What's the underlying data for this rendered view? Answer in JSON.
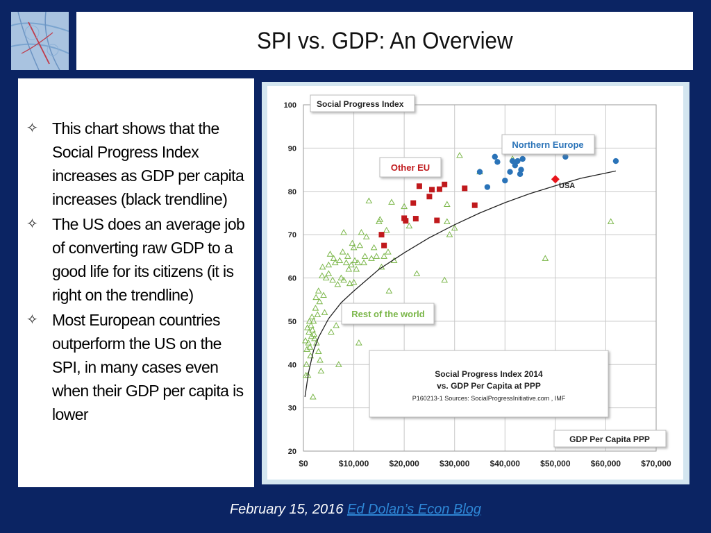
{
  "slide": {
    "title": "SPI vs. GDP: An Overview",
    "bullets": [
      "This chart shows that the Social Progress Index increases as GDP per capita increases (black trendline)",
      "The US does an average job of converting raw GDP to a good life for its citizens (it is right on the trendline)",
      "Most European countries outperform the US on the SPI, in many cases even when their GDP per capita is lower"
    ],
    "bullet_icon": "four-pointed-star-outline-icon",
    "footer": {
      "date": "February 15, 2016",
      "link_text": "Ed Dolan’s Econ Blog"
    },
    "colors": {
      "background": "#0b2463",
      "link": "#2e87d6"
    }
  },
  "chart_data": {
    "type": "scatter",
    "title": "Social Progress Index 2014",
    "subtitle": "vs. GDP Per Capita at PPP",
    "source_note": "P160213-1 Sources: SocialProgressInitiative.com , IMF",
    "ylabel": "Social Progress Index",
    "xlabel": "GDP Per Capita PPP",
    "xlim": [
      0,
      70000
    ],
    "ylim": [
      20,
      100
    ],
    "x_ticks": [
      0,
      10000,
      20000,
      30000,
      40000,
      50000,
      60000,
      70000
    ],
    "x_tick_labels": [
      "$0",
      "$10,000",
      "$20,000",
      "$30,000",
      "$40,000",
      "$50,000",
      "$60,000",
      "$70,000"
    ],
    "y_ticks": [
      20,
      30,
      40,
      50,
      60,
      70,
      80,
      90,
      100
    ],
    "y_tick_labels": [
      "20",
      "30",
      "40",
      "50",
      "60",
      "70",
      "80",
      "90",
      "100"
    ],
    "grid": true,
    "group_labels": {
      "northern_europe": "Northern Europe",
      "other_eu": "Other EU",
      "rest_of_world": "Rest of the world",
      "usa": "USA"
    },
    "series": [
      {
        "name": "Northern Europe",
        "marker": "circle",
        "color": "#2a73b8",
        "points": [
          [
            35000,
            84.5
          ],
          [
            36500,
            81
          ],
          [
            38000,
            88
          ],
          [
            38500,
            86.8
          ],
          [
            40000,
            82.5
          ],
          [
            41000,
            84.5
          ],
          [
            41500,
            87
          ],
          [
            42000,
            86
          ],
          [
            42500,
            87
          ],
          [
            43000,
            84
          ],
          [
            43200,
            85
          ],
          [
            43500,
            87.5
          ],
          [
            52000,
            88
          ],
          [
            62000,
            87
          ]
        ]
      },
      {
        "name": "Other EU",
        "marker": "square",
        "color": "#c0191c",
        "points": [
          [
            15500,
            70
          ],
          [
            16000,
            67.5
          ],
          [
            20000,
            73.8
          ],
          [
            20300,
            73.2
          ],
          [
            21800,
            77.3
          ],
          [
            22300,
            73.7
          ],
          [
            23000,
            81.2
          ],
          [
            25000,
            78.8
          ],
          [
            25500,
            80.4
          ],
          [
            26500,
            73.3
          ],
          [
            27000,
            80.5
          ],
          [
            28000,
            81.6
          ],
          [
            32000,
            80.7
          ],
          [
            34000,
            76.8
          ]
        ]
      },
      {
        "name": "USA",
        "marker": "diamond",
        "color": "#e8141b",
        "points": [
          [
            50000,
            82.8
          ]
        ]
      },
      {
        "name": "Rest of the world",
        "marker": "triangle",
        "color": "#7ab648",
        "points": [
          [
            400,
            45.5
          ],
          [
            500,
            37.5
          ],
          [
            600,
            40
          ],
          [
            700,
            43.5
          ],
          [
            800,
            48.5
          ],
          [
            900,
            37.5
          ],
          [
            1000,
            45
          ],
          [
            1100,
            47.5
          ],
          [
            1200,
            50
          ],
          [
            1300,
            44
          ],
          [
            1400,
            42
          ],
          [
            1500,
            49
          ],
          [
            1600,
            46.5
          ],
          [
            1700,
            51
          ],
          [
            1800,
            48
          ],
          [
            1900,
            32.5
          ],
          [
            2000,
            50
          ],
          [
            2100,
            47
          ],
          [
            2200,
            46
          ],
          [
            2400,
            53
          ],
          [
            2500,
            55.5
          ],
          [
            2600,
            45
          ],
          [
            2800,
            51.5
          ],
          [
            3000,
            57
          ],
          [
            3000,
            43
          ],
          [
            3200,
            54.5
          ],
          [
            3300,
            41
          ],
          [
            3500,
            38.5
          ],
          [
            3700,
            60.5
          ],
          [
            3800,
            62.5
          ],
          [
            4000,
            56
          ],
          [
            4200,
            52
          ],
          [
            4500,
            60
          ],
          [
            5000,
            63
          ],
          [
            5000,
            61
          ],
          [
            5300,
            65.5
          ],
          [
            5500,
            47.5
          ],
          [
            5800,
            59.5
          ],
          [
            6000,
            64.5
          ],
          [
            6300,
            63.5
          ],
          [
            6500,
            49
          ],
          [
            6800,
            58.5
          ],
          [
            7000,
            40
          ],
          [
            7200,
            64
          ],
          [
            7500,
            60
          ],
          [
            7800,
            66
          ],
          [
            8000,
            59.5
          ],
          [
            8000,
            70.5
          ],
          [
            8500,
            63.5
          ],
          [
            8800,
            65
          ],
          [
            9000,
            62
          ],
          [
            9200,
            58.7
          ],
          [
            9500,
            63
          ],
          [
            9700,
            68
          ],
          [
            10000,
            67
          ],
          [
            10000,
            59
          ],
          [
            10200,
            64
          ],
          [
            10500,
            62
          ],
          [
            10800,
            63.5
          ],
          [
            11000,
            45
          ],
          [
            11200,
            67.5
          ],
          [
            11500,
            70.5
          ],
          [
            12000,
            63.5
          ],
          [
            12200,
            65
          ],
          [
            12500,
            69.5
          ],
          [
            13000,
            77.8
          ],
          [
            13500,
            64.5
          ],
          [
            14000,
            67
          ],
          [
            14500,
            65
          ],
          [
            15000,
            73
          ],
          [
            15200,
            73.5
          ],
          [
            15500,
            62.5
          ],
          [
            16000,
            65
          ],
          [
            16500,
            71
          ],
          [
            16800,
            66
          ],
          [
            17000,
            57
          ],
          [
            17500,
            77.5
          ],
          [
            18000,
            64
          ],
          [
            20000,
            76.5
          ],
          [
            21000,
            72
          ],
          [
            22500,
            61
          ],
          [
            28000,
            59.5
          ],
          [
            28500,
            73
          ],
          [
            28500,
            77
          ],
          [
            29000,
            70
          ],
          [
            30000,
            71.5
          ],
          [
            31000,
            88.3
          ],
          [
            35000,
            84.5
          ],
          [
            41500,
            87.5
          ],
          [
            48000,
            64.5
          ],
          [
            61000,
            73
          ]
        ]
      }
    ],
    "trendline": {
      "color": "#222222",
      "points": [
        [
          300,
          32.5
        ],
        [
          1000,
          38.1
        ],
        [
          2000,
          43.2
        ],
        [
          3000,
          46.3
        ],
        [
          5000,
          50.6
        ],
        [
          7500,
          54.3
        ],
        [
          10000,
          57
        ],
        [
          15000,
          62
        ],
        [
          20000,
          65.8
        ],
        [
          25000,
          69.3
        ],
        [
          30000,
          72.3
        ],
        [
          35000,
          75
        ],
        [
          40000,
          77.4
        ],
        [
          45000,
          79.5
        ],
        [
          50000,
          81.3
        ],
        [
          55000,
          83
        ],
        [
          62000,
          84.7
        ]
      ]
    }
  }
}
